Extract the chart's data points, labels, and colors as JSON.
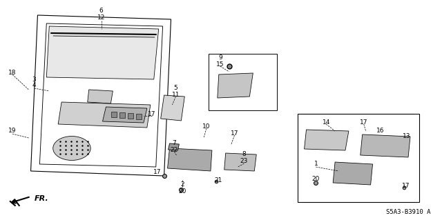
{
  "bg_color": "#ffffff",
  "diagram_code": "S5A3-B3910 A",
  "labels_left": [
    [
      "6",
      148,
      16
    ],
    [
      "12",
      148,
      26
    ],
    [
      "18",
      18,
      105
    ],
    [
      "3",
      50,
      115
    ],
    [
      "4",
      50,
      124
    ],
    [
      "19",
      18,
      190
    ]
  ],
  "labels_center": [
    [
      "17",
      222,
      165
    ],
    [
      "5",
      257,
      128
    ],
    [
      "11",
      257,
      138
    ]
  ],
  "labels_box1": [
    [
      "9",
      322,
      83
    ],
    [
      "15",
      322,
      93
    ]
  ],
  "labels_assembly": [
    [
      "7",
      255,
      207
    ],
    [
      "22",
      255,
      217
    ],
    [
      "10",
      302,
      183
    ],
    [
      "17",
      343,
      193
    ],
    [
      "8",
      357,
      224
    ],
    [
      "23",
      357,
      234
    ],
    [
      "17",
      230,
      250
    ],
    [
      "2",
      267,
      268
    ],
    [
      "20",
      267,
      278
    ],
    [
      "21",
      319,
      261
    ]
  ],
  "labels_box2": [
    [
      "14",
      477,
      177
    ],
    [
      "17",
      532,
      177
    ],
    [
      "16",
      556,
      189
    ],
    [
      "13",
      595,
      197
    ],
    [
      "1",
      462,
      238
    ],
    [
      "20",
      462,
      260
    ],
    [
      "17",
      594,
      270
    ]
  ]
}
